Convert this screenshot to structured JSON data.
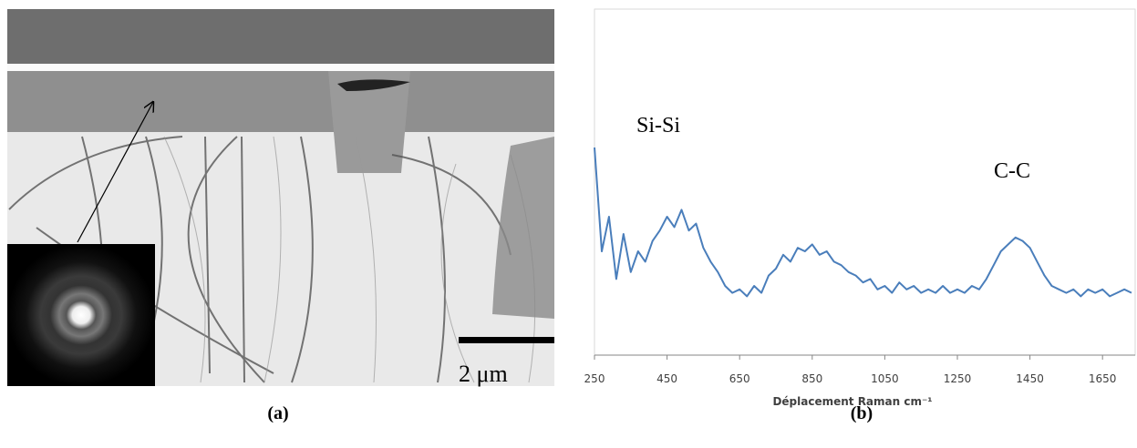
{
  "image": {
    "scale_label": "2 μm",
    "caption": "(a)"
  },
  "chart_data": {
    "type": "line",
    "caption": "(b)",
    "annotations": [
      "Si-Si",
      "C-C"
    ],
    "x_label": "Déplacement Raman cm⁻¹",
    "xlim": [
      250,
      1740
    ],
    "xticks": [
      250,
      450,
      650,
      850,
      1050,
      1250,
      1450,
      1650
    ],
    "ylim": [
      0,
      100
    ],
    "color": "#4a7ebb",
    "x": [
      250,
      270,
      290,
      310,
      330,
      350,
      370,
      390,
      410,
      430,
      450,
      470,
      490,
      510,
      530,
      550,
      570,
      590,
      610,
      630,
      650,
      670,
      690,
      710,
      730,
      750,
      770,
      790,
      810,
      830,
      850,
      870,
      890,
      910,
      930,
      950,
      970,
      990,
      1010,
      1030,
      1050,
      1070,
      1090,
      1110,
      1130,
      1150,
      1170,
      1190,
      1210,
      1230,
      1250,
      1270,
      1290,
      1310,
      1330,
      1350,
      1370,
      1390,
      1410,
      1430,
      1450,
      1470,
      1490,
      1510,
      1530,
      1550,
      1570,
      1590,
      1610,
      1630,
      1650,
      1670,
      1690,
      1710,
      1730
    ],
    "values": [
      60,
      30,
      40,
      22,
      35,
      24,
      30,
      27,
      33,
      36,
      40,
      37,
      42,
      36,
      38,
      31,
      27,
      24,
      20,
      18,
      19,
      17,
      20,
      18,
      23,
      25,
      29,
      27,
      31,
      30,
      32,
      29,
      30,
      27,
      26,
      24,
      23,
      21,
      22,
      19,
      20,
      18,
      21,
      19,
      20,
      18,
      19,
      18,
      20,
      18,
      19,
      18,
      20,
      19,
      22,
      26,
      30,
      32,
      34,
      33,
      31,
      27,
      23,
      20,
      19,
      18,
      19,
      17,
      19,
      18,
      19,
      17,
      18,
      19,
      18
    ]
  }
}
